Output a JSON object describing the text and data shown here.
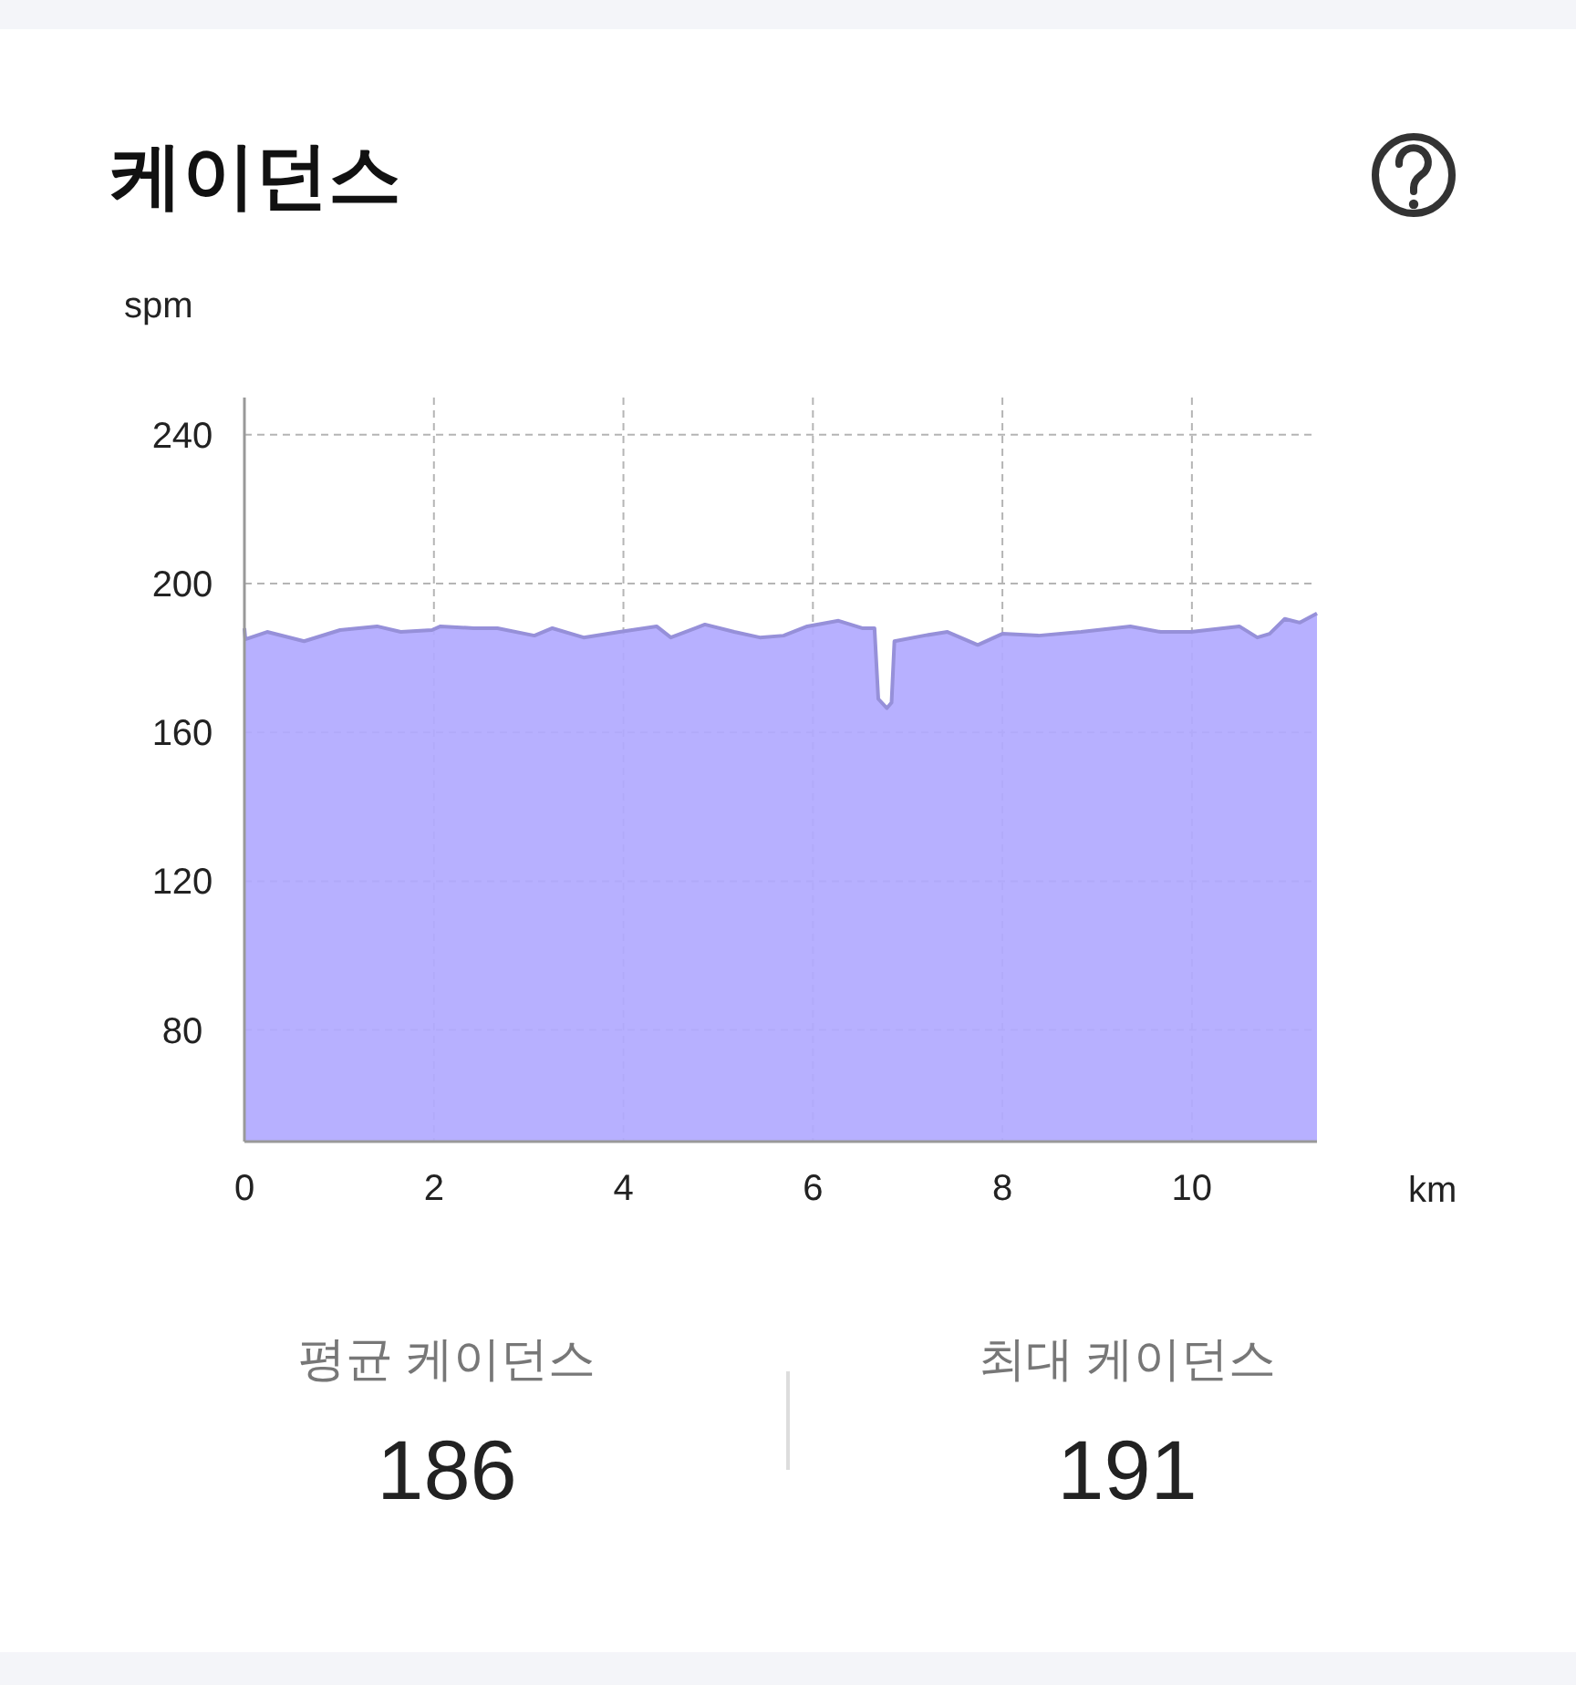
{
  "chart_data": {
    "type": "area",
    "title": "케이던스",
    "ylabel": "spm",
    "xlabel": "km",
    "x": [
      0,
      0.01,
      0.24,
      0.63,
      1.01,
      1.4,
      1.65,
      1.98,
      2.07,
      2.42,
      2.67,
      3.06,
      3.25,
      3.58,
      3.96,
      4.35,
      4.5,
      4.86,
      5.17,
      5.44,
      5.69,
      5.94,
      6.27,
      6.52,
      6.65,
      6.69,
      6.78,
      6.83,
      6.86,
      7.17,
      7.42,
      7.74,
      8.0,
      8.38,
      8.83,
      9.35,
      9.67,
      9.99,
      10.5,
      10.69,
      10.82,
      10.98,
      11.14,
      11.32
    ],
    "series": [
      {
        "color": "#b1a9ff",
        "values": [
          188,
          185,
          187,
          184.5,
          187.5,
          188.5,
          187,
          187.5,
          188.5,
          188,
          188,
          186,
          188,
          185.5,
          187,
          188.5,
          185.5,
          189,
          187,
          185.5,
          186,
          188.5,
          190,
          188,
          188,
          169,
          166.5,
          168,
          184.5,
          186,
          187,
          183.5,
          186.5,
          186,
          187,
          188.5,
          187,
          187,
          188.5,
          185.5,
          186.5,
          190.5,
          189.5,
          192
        ]
      }
    ],
    "xlim": [
      0,
      11.32
    ],
    "ylim": [
      50,
      250
    ],
    "xticks": [
      0,
      2,
      4,
      6,
      8,
      10
    ],
    "yticks": [
      80,
      120,
      160,
      200,
      240
    ],
    "grid": true,
    "annotations": [
      "평균 케이던스",
      "186",
      "최대 케이던스",
      "191"
    ]
  }
}
